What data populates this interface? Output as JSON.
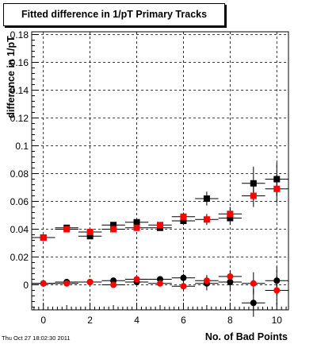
{
  "chart_data": {
    "type": "scatter",
    "title": "Fitted difference in 1/pT Primary Tracks",
    "xlabel": "No. of Bad Points",
    "ylabel": "difference in 1/pT",
    "xlim": [
      -0.5,
      10.5
    ],
    "ylim": [
      -0.018,
      0.182
    ],
    "xticks": [
      0,
      2,
      4,
      6,
      8,
      10
    ],
    "yticks": [
      0,
      0.02,
      0.04,
      0.06,
      0.08,
      0.1,
      0.12,
      0.14,
      0.16,
      0.18
    ],
    "ytick_labels": [
      "0",
      "0.02",
      "0.04",
      "0.06",
      "0.08",
      "0.1",
      "0.12",
      "0.14",
      "0.16",
      "0.18"
    ],
    "grid": true,
    "series": [
      {
        "marker": "square",
        "color": "#000000",
        "x": [
          0,
          1,
          2,
          3,
          4,
          5,
          6,
          7,
          8,
          9,
          10
        ],
        "y": [
          0.034,
          0.041,
          0.035,
          0.043,
          0.045,
          0.041,
          0.046,
          0.062,
          0.048,
          0.073,
          0.076
        ],
        "yerr": [
          0.001,
          0.001,
          0.001,
          0.001,
          0.001,
          0.002,
          0.003,
          0.005,
          0.005,
          0.012,
          0.012
        ]
      },
      {
        "marker": "square",
        "color": "#ff0000",
        "x": [
          0,
          1,
          2,
          3,
          4,
          5,
          6,
          7,
          8,
          9,
          10
        ],
        "y": [
          0.034,
          0.04,
          0.038,
          0.04,
          0.041,
          0.043,
          0.049,
          0.047,
          0.051,
          0.064,
          0.069
        ],
        "yerr": [
          0.001,
          0.001,
          0.001,
          0.001,
          0.002,
          0.002,
          0.003,
          0.004,
          0.005,
          0.008,
          0.01
        ]
      },
      {
        "marker": "circle",
        "color": "#000000",
        "x": [
          0,
          1,
          2,
          3,
          4,
          5,
          6,
          7,
          8,
          9,
          10
        ],
        "y": [
          0.001,
          0.002,
          0.002,
          0.003,
          0.002,
          0.004,
          0.005,
          0.001,
          0.002,
          -0.013,
          0.003
        ],
        "yerr": [
          0.001,
          0.001,
          0.001,
          0.001,
          0.002,
          0.002,
          0.003,
          0.005,
          0.006,
          0.01,
          0.01
        ]
      },
      {
        "marker": "circle",
        "color": "#ff0000",
        "x": [
          0,
          1,
          2,
          3,
          4,
          5,
          6,
          7,
          8,
          9,
          10
        ],
        "y": [
          0.001,
          0.001,
          0.002,
          0.0,
          0.004,
          0.001,
          -0.001,
          0.003,
          0.006,
          0.001,
          -0.004
        ],
        "yerr": [
          0.001,
          0.001,
          0.001,
          0.001,
          0.002,
          0.002,
          0.003,
          0.004,
          0.004,
          0.008,
          0.01
        ]
      }
    ]
  },
  "timestamp": "Thu Oct 27 18:02:30 2011"
}
